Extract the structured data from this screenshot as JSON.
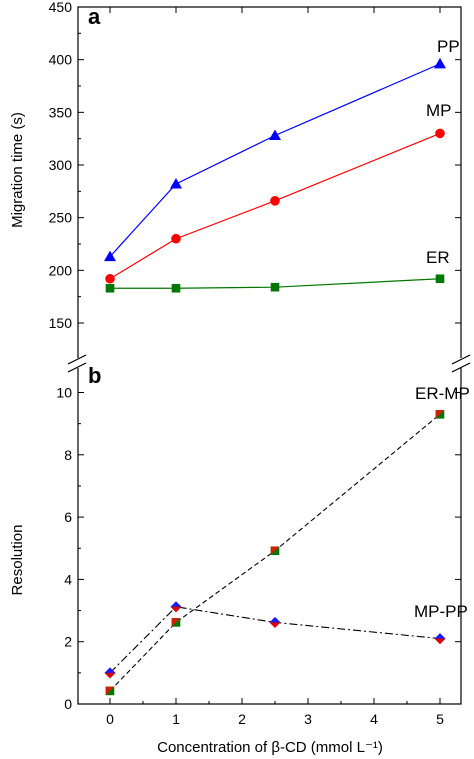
{
  "chart_data": [
    {
      "panel": "a",
      "type": "line",
      "ylabel": "Migration time (s)",
      "xlabel": "Concentration of β-CD (mmol L⁻¹)",
      "x": [
        0,
        1,
        2.5,
        5
      ],
      "xlim": [
        -0.5,
        5.5
      ],
      "ylim": [
        130,
        450
      ],
      "yticks": [
        150,
        200,
        250,
        300,
        350,
        400,
        450
      ],
      "series": [
        {
          "name": "PP",
          "marker": "triangle",
          "color": "#0000ff",
          "values": [
            213,
            282,
            328,
            396
          ]
        },
        {
          "name": "MP",
          "marker": "circle",
          "color": "#ff0000",
          "values": [
            192,
            230,
            266,
            330
          ]
        },
        {
          "name": "ER",
          "marker": "square",
          "color": "#007700",
          "values": [
            183,
            183,
            184,
            192
          ]
        }
      ]
    },
    {
      "panel": "b",
      "type": "line",
      "ylabel": "Resolution",
      "xlabel": "Concentration of β-CD (mmol L⁻¹)",
      "x": [
        0,
        1,
        2.5,
        5
      ],
      "xlim": [
        -0.5,
        5.5
      ],
      "xticks": [
        0,
        1,
        2,
        3,
        4,
        5
      ],
      "ylim": [
        0,
        11
      ],
      "yticks": [
        0,
        2,
        4,
        6,
        8,
        10
      ],
      "series": [
        {
          "name": "ER-MP",
          "linestyle": "dashed",
          "marker": "square",
          "color": "#cc2200",
          "values": [
            0.42,
            2.62,
            4.92,
            9.3
          ]
        },
        {
          "name": "MP-PP",
          "linestyle": "dash-dot",
          "marker": "diamond",
          "color": "#cc0000",
          "values": [
            1.0,
            3.12,
            2.62,
            2.1
          ]
        }
      ]
    }
  ]
}
